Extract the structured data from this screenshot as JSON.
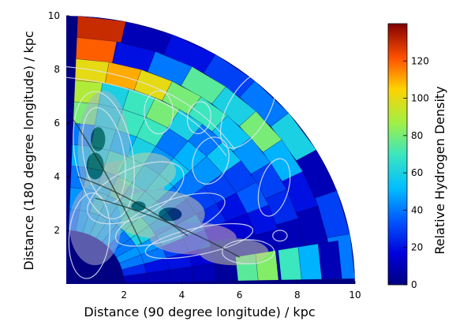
{
  "chart_data": {
    "type": "heatmap",
    "title": "",
    "xlabel": "Distance (90 degree longitude) / kpc",
    "ylabel": "Distance (180 degree longitude) / kpc",
    "colorbar_label": "Relative Hydrogen Density",
    "xlim": [
      0,
      10
    ],
    "ylim": [
      0,
      10
    ],
    "x_ticks": [
      "2",
      "4",
      "6",
      "8",
      "10"
    ],
    "y_ticks": [
      "2",
      "4",
      "6",
      "8",
      "10"
    ],
    "colorbar_range": [
      0,
      140
    ],
    "colorbar_ticks": [
      "0",
      "20",
      "40",
      "60",
      "80",
      "100",
      "120"
    ],
    "colormap": "jet",
    "grid": false,
    "polar_bin_rows": [
      {
        "r": 9.6,
        "values": [
          130,
          10,
          20,
          30,
          40,
          60,
          10,
          30,
          40
        ]
      },
      {
        "r": 8.8,
        "values": [
          120,
          20,
          40,
          75,
          60,
          80,
          50,
          20,
          10,
          10
        ]
      },
      {
        "r": 8.0,
        "values": [
          100,
          110,
          100,
          80,
          70,
          55,
          45,
          30,
          25,
          10,
          5
        ]
      },
      {
        "r": 7.2,
        "values": [
          90,
          60,
          70,
          80,
          60,
          40,
          55,
          30,
          35,
          20,
          10,
          5
        ]
      },
      {
        "r": 6.4,
        "values": [
          80,
          60,
          70,
          70,
          40,
          50,
          45,
          30,
          20,
          15,
          10,
          5
        ]
      },
      {
        "r": 5.6,
        "values": [
          40,
          60,
          50,
          60,
          45,
          55,
          40,
          30,
          25,
          15,
          10,
          5
        ]
      },
      {
        "r": 4.8,
        "values": [
          50,
          60,
          70,
          60,
          50,
          55,
          40,
          30,
          40,
          30,
          15,
          10
        ]
      },
      {
        "r": 4.0,
        "values": [
          40,
          55,
          60,
          70,
          60,
          55,
          50,
          45,
          50,
          30,
          20,
          10
        ]
      },
      {
        "r": 3.2,
        "values": [
          45,
          50,
          65,
          60,
          55,
          60,
          65,
          60,
          45,
          40,
          20,
          10
        ]
      },
      {
        "r": 2.4,
        "values": [
          40,
          50,
          55,
          60,
          55,
          50,
          40,
          40,
          45,
          40,
          25,
          10
        ]
      }
    ],
    "low_theta_bins": [
      {
        "r": 6.3,
        "value": 75
      },
      {
        "r": 7.0,
        "value": 82
      },
      {
        "r": 7.8,
        "value": 70
      },
      {
        "r": 8.5,
        "value": 50
      },
      {
        "r": 9.2,
        "value": 10
      }
    ]
  }
}
